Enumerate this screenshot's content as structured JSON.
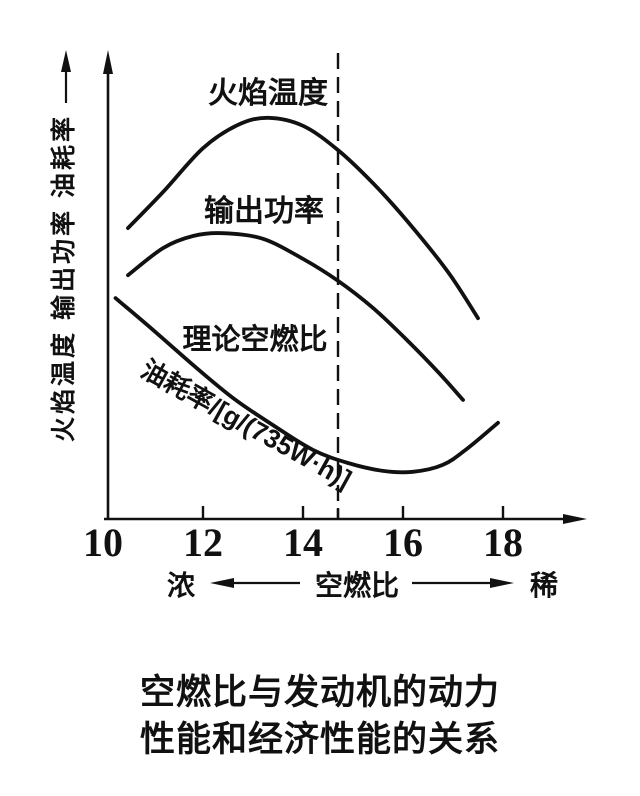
{
  "figure": {
    "y_axis_label": "火焰温度 输出功率 油耗率",
    "labels": {
      "flame_temperature": "火焰温度",
      "output_power": "输出功率",
      "stoichiometric_afr": "理论空燃比",
      "fuel_consumption_rate": "油耗率/[g/(735W·h)]",
      "rich": "浓",
      "afr_axis": "空燃比",
      "lean": "稀"
    },
    "caption_line1": "空燃比与发动机的动力",
    "caption_line2": "性能和经济性能的关系"
  },
  "chart_data": {
    "type": "line",
    "title": "空燃比与发动机的动力性能和经济性能的关系",
    "xlabel": "空燃比",
    "xlabel_direction_left": "浓",
    "xlabel_direction_right": "稀",
    "ylabel": "火焰温度 输出功率 油耗率",
    "xlim": [
      10,
      19.3
    ],
    "x_ticks": [
      10,
      12,
      14,
      16,
      18
    ],
    "y_axis_note": "unlabeled relative scale, 0-100",
    "grid": false,
    "legend_position": "inline curve labels",
    "reference_line": {
      "x": 14.7,
      "label": "理论空燃比",
      "style": "dashed-vertical"
    },
    "series": [
      {
        "name": "火焰温度",
        "points": [
          [
            10.5,
            62.3
          ],
          [
            11.2,
            70.0
          ],
          [
            12.0,
            79.4
          ],
          [
            12.7,
            84.4
          ],
          [
            13.3,
            85.9
          ],
          [
            14.0,
            84.2
          ],
          [
            14.7,
            79.0
          ],
          [
            15.4,
            71.9
          ],
          [
            16.1,
            63.6
          ],
          [
            16.9,
            52.9
          ],
          [
            17.5,
            43.0
          ]
        ]
      },
      {
        "name": "输出功率",
        "points": [
          [
            10.5,
            52.2
          ],
          [
            11.2,
            58.0
          ],
          [
            11.8,
            60.6
          ],
          [
            12.4,
            61.2
          ],
          [
            13.2,
            60.0
          ],
          [
            14.0,
            55.7
          ],
          [
            14.7,
            51.0
          ],
          [
            15.4,
            45.2
          ],
          [
            16.1,
            38.1
          ],
          [
            16.7,
            31.5
          ],
          [
            17.2,
            25.5
          ]
        ]
      },
      {
        "name": "油耗率/[g/(735W·h)]",
        "points": [
          [
            10.25,
            47.3
          ],
          [
            11.0,
            40.5
          ],
          [
            11.8,
            33.0
          ],
          [
            12.6,
            25.9
          ],
          [
            13.4,
            20.1
          ],
          [
            14.2,
            14.8
          ],
          [
            14.9,
            12.0
          ],
          [
            15.6,
            10.3
          ],
          [
            16.2,
            10.1
          ],
          [
            16.8,
            11.6
          ],
          [
            17.3,
            15.2
          ],
          [
            17.9,
            20.6
          ]
        ]
      }
    ]
  }
}
